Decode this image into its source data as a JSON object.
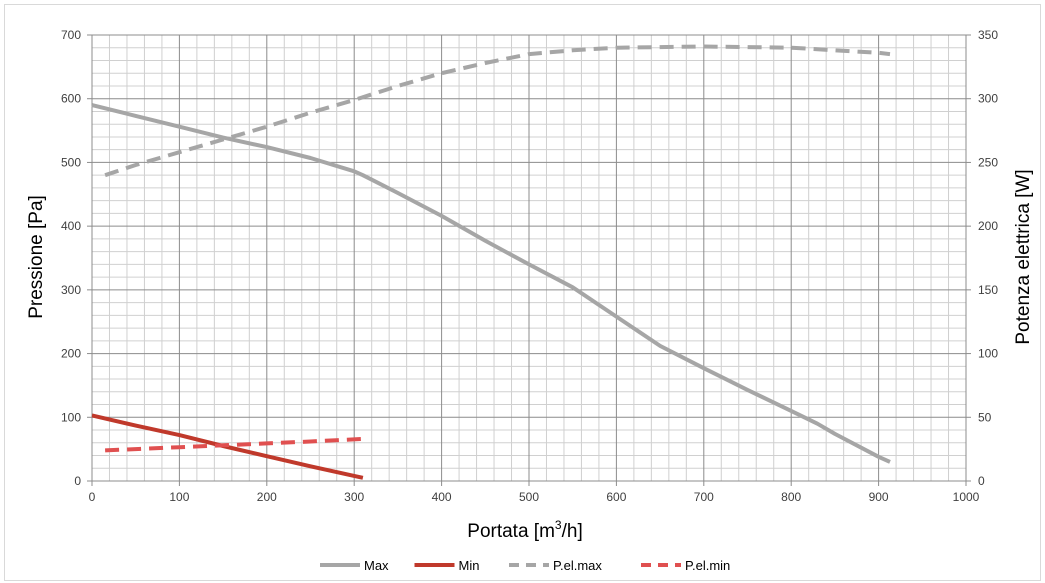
{
  "chart_data": {
    "type": "line",
    "title": "",
    "xlabel": "Portata [m³/h]",
    "xlabel_base": "Portata [m",
    "xlabel_sup": "3",
    "xlabel_tail": "/h]",
    "ylabel": "Pressione [Pa]",
    "y2label": "Potenza elettrica [W]",
    "xlim": [
      0,
      1000
    ],
    "ylim": [
      0,
      700
    ],
    "y2lim": [
      0,
      350
    ],
    "x_ticks": [
      "0",
      "100",
      "200",
      "300",
      "400",
      "500",
      "600",
      "700",
      "800",
      "900",
      "1000"
    ],
    "y_ticks": [
      "0",
      "100",
      "200",
      "300",
      "400",
      "500",
      "600",
      "700"
    ],
    "y2_ticks": [
      "0",
      "50",
      "100",
      "150",
      "200",
      "250",
      "300",
      "350"
    ],
    "grid": true,
    "legend_position": "bottom",
    "series": [
      {
        "name": "Max",
        "axis": "left",
        "style": "solid",
        "color": "#a6a6a6",
        "points": [
          [
            0,
            590
          ],
          [
            50,
            573
          ],
          [
            100,
            556
          ],
          [
            150,
            539
          ],
          [
            200,
            524
          ],
          [
            250,
            507
          ],
          [
            300,
            486
          ],
          [
            310,
            480
          ],
          [
            350,
            452
          ],
          [
            400,
            416
          ],
          [
            450,
            377
          ],
          [
            500,
            340
          ],
          [
            550,
            304
          ],
          [
            600,
            258
          ],
          [
            650,
            212
          ],
          [
            700,
            177
          ],
          [
            750,
            143
          ],
          [
            800,
            110
          ],
          [
            830,
            90
          ],
          [
            850,
            74
          ],
          [
            900,
            38
          ],
          [
            913,
            30
          ]
        ]
      },
      {
        "name": "Min",
        "axis": "left",
        "style": "solid",
        "color": "#c0392b",
        "points": [
          [
            0,
            103
          ],
          [
            50,
            87
          ],
          [
            100,
            72
          ],
          [
            150,
            55
          ],
          [
            200,
            39
          ],
          [
            250,
            23
          ],
          [
            300,
            8
          ],
          [
            310,
            5
          ]
        ]
      },
      {
        "name": "P.el.max",
        "axis": "right",
        "style": "dashed",
        "color": "#a6a6a6",
        "points": [
          [
            15,
            240
          ],
          [
            50,
            248
          ],
          [
            100,
            258
          ],
          [
            150,
            268
          ],
          [
            200,
            278
          ],
          [
            250,
            289
          ],
          [
            300,
            299
          ],
          [
            350,
            310
          ],
          [
            400,
            320
          ],
          [
            450,
            328
          ],
          [
            500,
            335
          ],
          [
            550,
            338
          ],
          [
            600,
            340
          ],
          [
            700,
            341
          ],
          [
            800,
            340
          ],
          [
            850,
            338
          ],
          [
            900,
            336
          ],
          [
            913,
            335
          ]
        ]
      },
      {
        "name": "P.el.min",
        "axis": "right",
        "style": "dashed",
        "color": "#e05050",
        "points": [
          [
            15,
            24
          ],
          [
            100,
            26.5
          ],
          [
            200,
            29.5
          ],
          [
            250,
            31
          ],
          [
            310,
            33
          ]
        ]
      }
    ]
  }
}
